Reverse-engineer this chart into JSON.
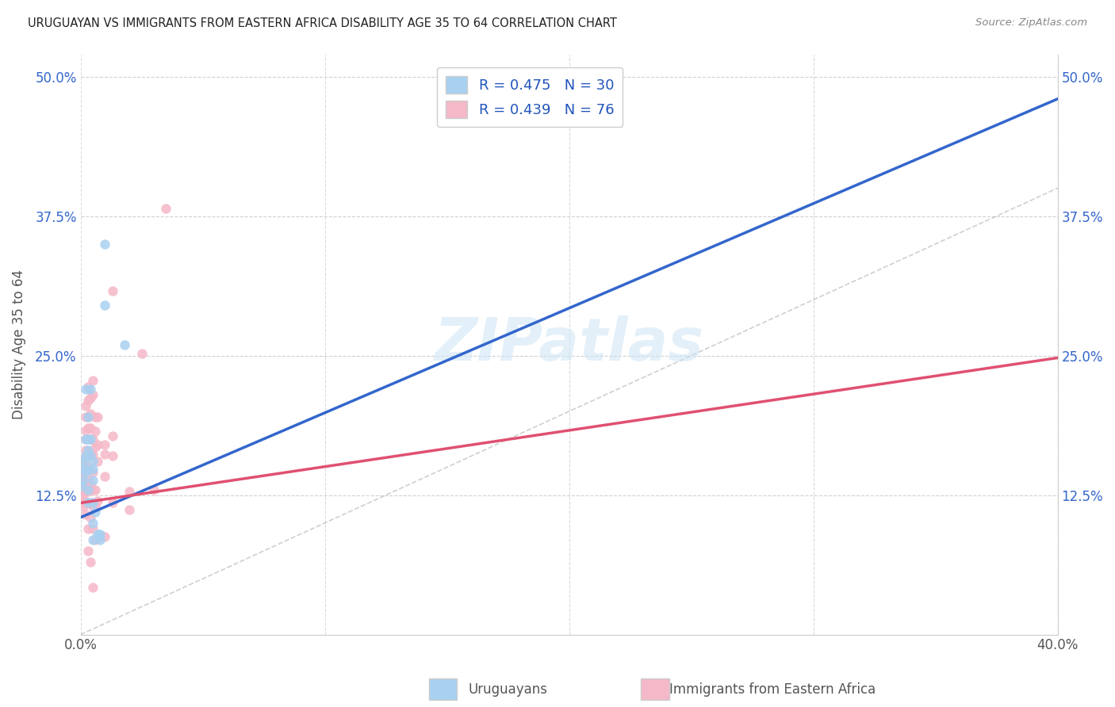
{
  "title": "URUGUAYAN VS IMMIGRANTS FROM EASTERN AFRICA DISABILITY AGE 35 TO 64 CORRELATION CHART",
  "source": "Source: ZipAtlas.com",
  "ylabel": "Disability Age 35 to 64",
  "xlim": [
    0.0,
    0.4
  ],
  "ylim": [
    0.0,
    0.52
  ],
  "legend_r1": "R = 0.475",
  "legend_n1": "N = 30",
  "legend_r2": "R = 0.439",
  "legend_n2": "N = 76",
  "blue_scatter_color": "#a8d0f0",
  "pink_scatter_color": "#f5b8c8",
  "blue_line_color": "#3366cc",
  "pink_line_color": "#e05070",
  "gray_line_color": "#b0b0b0",
  "yticks_positions": [
    0.125,
    0.25,
    0.375,
    0.5
  ],
  "ytick_labels": [
    "12.5%",
    "25.0%",
    "37.5%",
    "50.0%"
  ],
  "xtick_labels": [
    "0.0%",
    "40.0%"
  ],
  "watermark": "ZIPatlas",
  "uruguayan_points": [
    [
      0.0,
      0.133
    ],
    [
      0.001,
      0.138
    ],
    [
      0.001,
      0.148
    ],
    [
      0.001,
      0.155
    ],
    [
      0.002,
      0.22
    ],
    [
      0.002,
      0.175
    ],
    [
      0.002,
      0.16
    ],
    [
      0.002,
      0.145
    ],
    [
      0.003,
      0.195
    ],
    [
      0.003,
      0.175
    ],
    [
      0.003,
      0.165
    ],
    [
      0.003,
      0.148
    ],
    [
      0.003,
      0.13
    ],
    [
      0.003,
      0.118
    ],
    [
      0.004,
      0.22
    ],
    [
      0.004,
      0.175
    ],
    [
      0.004,
      0.16
    ],
    [
      0.005,
      0.155
    ],
    [
      0.005,
      0.148
    ],
    [
      0.005,
      0.138
    ],
    [
      0.005,
      0.118
    ],
    [
      0.005,
      0.1
    ],
    [
      0.005,
      0.085
    ],
    [
      0.006,
      0.11
    ],
    [
      0.007,
      0.09
    ],
    [
      0.008,
      0.09
    ],
    [
      0.008,
      0.085
    ],
    [
      0.01,
      0.35
    ],
    [
      0.01,
      0.295
    ],
    [
      0.018,
      0.26
    ]
  ],
  "eastern_africa_points": [
    [
      0.0,
      0.145
    ],
    [
      0.0,
      0.138
    ],
    [
      0.0,
      0.13
    ],
    [
      0.0,
      0.125
    ],
    [
      0.001,
      0.158
    ],
    [
      0.001,
      0.15
    ],
    [
      0.001,
      0.142
    ],
    [
      0.001,
      0.135
    ],
    [
      0.001,
      0.128
    ],
    [
      0.001,
      0.122
    ],
    [
      0.001,
      0.115
    ],
    [
      0.002,
      0.205
    ],
    [
      0.002,
      0.195
    ],
    [
      0.002,
      0.183
    ],
    [
      0.002,
      0.175
    ],
    [
      0.002,
      0.165
    ],
    [
      0.002,
      0.158
    ],
    [
      0.002,
      0.148
    ],
    [
      0.002,
      0.138
    ],
    [
      0.002,
      0.128
    ],
    [
      0.002,
      0.118
    ],
    [
      0.002,
      0.108
    ],
    [
      0.003,
      0.222
    ],
    [
      0.003,
      0.21
    ],
    [
      0.003,
      0.195
    ],
    [
      0.003,
      0.185
    ],
    [
      0.003,
      0.175
    ],
    [
      0.003,
      0.162
    ],
    [
      0.003,
      0.15
    ],
    [
      0.003,
      0.138
    ],
    [
      0.003,
      0.128
    ],
    [
      0.003,
      0.118
    ],
    [
      0.003,
      0.095
    ],
    [
      0.003,
      0.075
    ],
    [
      0.004,
      0.212
    ],
    [
      0.004,
      0.198
    ],
    [
      0.004,
      0.185
    ],
    [
      0.004,
      0.175
    ],
    [
      0.004,
      0.162
    ],
    [
      0.004,
      0.148
    ],
    [
      0.004,
      0.135
    ],
    [
      0.004,
      0.118
    ],
    [
      0.004,
      0.105
    ],
    [
      0.004,
      0.065
    ],
    [
      0.005,
      0.228
    ],
    [
      0.005,
      0.215
    ],
    [
      0.005,
      0.175
    ],
    [
      0.005,
      0.162
    ],
    [
      0.005,
      0.145
    ],
    [
      0.005,
      0.13
    ],
    [
      0.005,
      0.115
    ],
    [
      0.005,
      0.095
    ],
    [
      0.005,
      0.042
    ],
    [
      0.006,
      0.195
    ],
    [
      0.006,
      0.182
    ],
    [
      0.006,
      0.168
    ],
    [
      0.006,
      0.13
    ],
    [
      0.006,
      0.115
    ],
    [
      0.006,
      0.085
    ],
    [
      0.007,
      0.195
    ],
    [
      0.007,
      0.17
    ],
    [
      0.007,
      0.155
    ],
    [
      0.007,
      0.12
    ],
    [
      0.01,
      0.17
    ],
    [
      0.01,
      0.162
    ],
    [
      0.01,
      0.142
    ],
    [
      0.01,
      0.088
    ],
    [
      0.013,
      0.308
    ],
    [
      0.013,
      0.178
    ],
    [
      0.013,
      0.16
    ],
    [
      0.013,
      0.118
    ],
    [
      0.02,
      0.128
    ],
    [
      0.02,
      0.112
    ],
    [
      0.025,
      0.252
    ],
    [
      0.03,
      0.13
    ],
    [
      0.035,
      0.382
    ]
  ],
  "blue_line_x": [
    0.0,
    0.4
  ],
  "blue_line_y": [
    0.105,
    0.48
  ],
  "pink_line_x": [
    0.0,
    0.4
  ],
  "pink_line_y": [
    0.118,
    0.248
  ]
}
